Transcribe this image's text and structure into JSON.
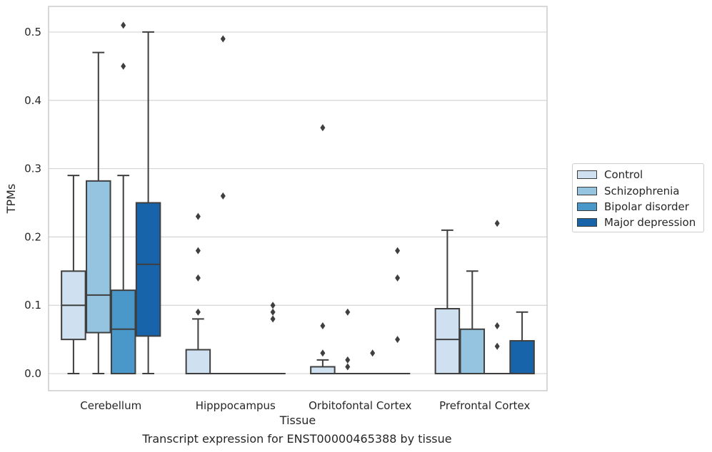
{
  "chart_data": {
    "type": "boxplot",
    "title": "",
    "caption": "Transcript expression for ENST00000465388 by tissue",
    "xlabel": "Tissue",
    "ylabel": "TPMs",
    "ylim": [
      -0.025,
      0.5375
    ],
    "yticks": [
      "0.0",
      "0.1",
      "0.2",
      "0.3",
      "0.4",
      "0.5"
    ],
    "ytick_values": [
      0.0,
      0.1,
      0.2,
      0.3,
      0.4,
      0.5
    ],
    "grid": "horizontal",
    "legend_position": "right",
    "categories": [
      "Cerebellum",
      "Hipppocampus",
      "Orbitofontal Cortex",
      "Prefrontal Cortex"
    ],
    "series": [
      {
        "name": "Control",
        "color": "#cfe0f1",
        "boxes": [
          {
            "whislo": 0.0,
            "q1": 0.05,
            "med": 0.1,
            "q3": 0.15,
            "whishi": 0.29,
            "fliers": []
          },
          {
            "whislo": 0.0,
            "q1": 0.0,
            "med": 0.0,
            "q3": 0.035,
            "whishi": 0.08,
            "fliers": [
              0.09,
              0.14,
              0.18,
              0.23
            ]
          },
          {
            "whislo": 0.0,
            "q1": 0.0,
            "med": 0.0,
            "q3": 0.01,
            "whishi": 0.02,
            "fliers": [
              0.03,
              0.07,
              0.36
            ]
          },
          {
            "whislo": 0.0,
            "q1": 0.0,
            "med": 0.05,
            "q3": 0.095,
            "whishi": 0.21,
            "fliers": []
          }
        ]
      },
      {
        "name": "Schizophrenia",
        "color": "#94c4df",
        "boxes": [
          {
            "whislo": 0.0,
            "q1": 0.06,
            "med": 0.115,
            "q3": 0.282,
            "whishi": 0.47,
            "fliers": []
          },
          {
            "whislo": 0.0,
            "q1": 0.0,
            "med": 0.0,
            "q3": 0.0,
            "whishi": 0.0,
            "fliers": [
              0.26,
              0.49
            ]
          },
          {
            "whislo": 0.0,
            "q1": 0.0,
            "med": 0.0,
            "q3": 0.0,
            "whishi": 0.0,
            "fliers": [
              0.01,
              0.02,
              0.09
            ]
          },
          {
            "whislo": 0.0,
            "q1": 0.0,
            "med": 0.0,
            "q3": 0.065,
            "whishi": 0.15,
            "fliers": []
          }
        ]
      },
      {
        "name": "Bipolar disorder",
        "color": "#4a98c9",
        "boxes": [
          {
            "whislo": 0.0,
            "q1": 0.0,
            "med": 0.065,
            "q3": 0.122,
            "whishi": 0.29,
            "fliers": [
              0.45,
              0.51
            ]
          },
          {
            "whislo": 0.0,
            "q1": 0.0,
            "med": 0.0,
            "q3": 0.0,
            "whishi": 0.0,
            "fliers": []
          },
          {
            "whislo": 0.0,
            "q1": 0.0,
            "med": 0.0,
            "q3": 0.0,
            "whishi": 0.0,
            "fliers": [
              0.03
            ]
          },
          {
            "whislo": 0.0,
            "q1": 0.0,
            "med": 0.0,
            "q3": 0.0,
            "whishi": 0.0,
            "fliers": [
              0.04,
              0.07,
              0.22
            ]
          }
        ]
      },
      {
        "name": "Major depression",
        "color": "#1764ab",
        "boxes": [
          {
            "whislo": 0.0,
            "q1": 0.055,
            "med": 0.16,
            "q3": 0.25,
            "whishi": 0.5,
            "fliers": []
          },
          {
            "whislo": 0.0,
            "q1": 0.0,
            "med": 0.0,
            "q3": 0.0,
            "whishi": 0.0,
            "fliers": [
              0.08,
              0.09,
              0.1
            ]
          },
          {
            "whislo": 0.0,
            "q1": 0.0,
            "med": 0.0,
            "q3": 0.0,
            "whishi": 0.0,
            "fliers": [
              0.05,
              0.14,
              0.18
            ]
          },
          {
            "whislo": 0.0,
            "q1": 0.0,
            "med": 0.0,
            "q3": 0.048,
            "whishi": 0.09,
            "fliers": []
          }
        ]
      }
    ]
  }
}
